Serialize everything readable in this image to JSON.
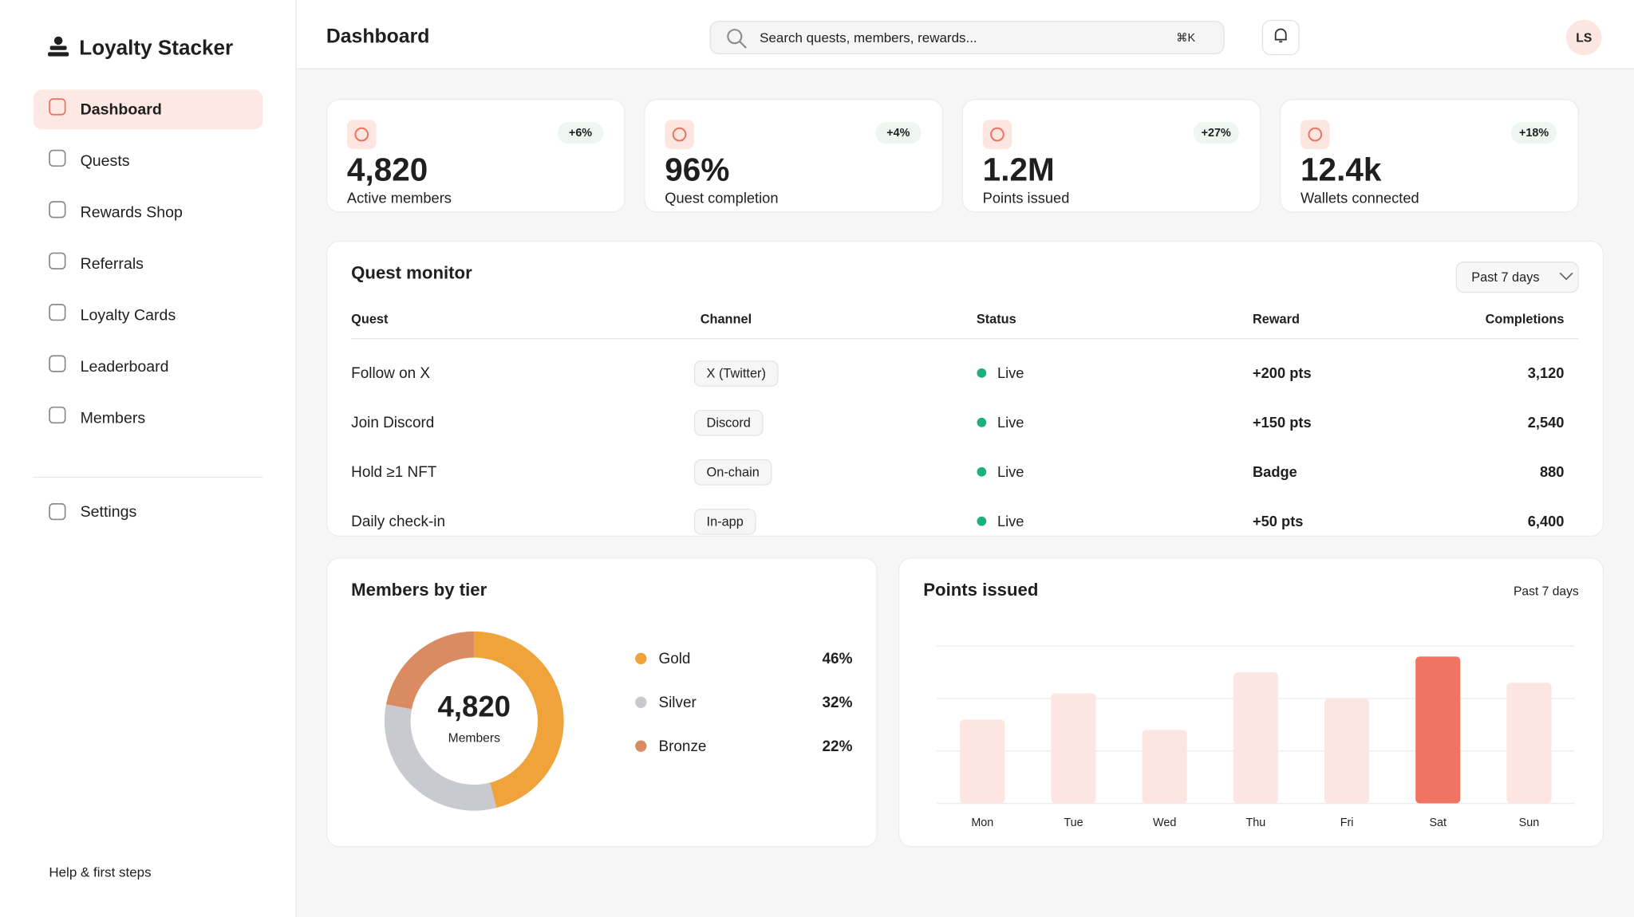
{
  "sidebar": {
    "brand": "Loyalty Stacker",
    "nav": [
      "Dashboard",
      "Quests",
      "Rewards Shop",
      "Referrals",
      "Loyalty Cards",
      "Leaderboard",
      "Members"
    ],
    "settings": "Settings",
    "help": "Help & first steps"
  },
  "header": {
    "title": "Dashboard",
    "search_placeholder": "Search quests, members, rewards...",
    "shortcut": "⌘K",
    "avatar": "LS"
  },
  "kpis": [
    {
      "value": "4,820",
      "label": "Active members",
      "delta": "+6%"
    },
    {
      "value": "96%",
      "label": "Quest completion",
      "delta": "+4%"
    },
    {
      "value": "1.2M",
      "label": "Points issued",
      "delta": "+27%"
    },
    {
      "value": "12.4k",
      "label": "Wallets connected",
      "delta": "+18%"
    }
  ],
  "quest_monitor": {
    "title": "Quest monitor",
    "range": "Past 7 days",
    "columns": [
      "Quest",
      "Channel",
      "Status",
      "Reward",
      "Completions"
    ],
    "rows": [
      [
        "Follow on X",
        "X (Twitter)",
        "Live",
        "+200 pts",
        "3,120"
      ],
      [
        "Join Discord",
        "Discord",
        "Live",
        "+150 pts",
        "2,540"
      ],
      [
        "Hold ≥1 NFT",
        "On-chain",
        "Live",
        "Badge",
        "880"
      ],
      [
        "Daily check-in",
        "In-app",
        "Live",
        "+50 pts",
        "6,400"
      ]
    ]
  },
  "chart_data": [
    {
      "type": "pie",
      "title": "Members by tier",
      "center_value": "4,820",
      "center_label": "Members",
      "categories": [
        "Gold",
        "Silver",
        "Bronze"
      ],
      "values": [
        46,
        32,
        22
      ],
      "value_labels": [
        "46%",
        "32%",
        "22%"
      ],
      "colors": [
        "#f1a33b",
        "#c9cacf",
        "#db8b61"
      ]
    },
    {
      "type": "bar",
      "title": "Points issued",
      "subtitle": "Past 7 days",
      "categories": [
        "Mon",
        "Tue",
        "Wed",
        "Thu",
        "Fri",
        "Sat",
        "Sun"
      ],
      "values": [
        1.6,
        2.1,
        1.4,
        2.5,
        2.0,
        2.8,
        2.3
      ],
      "colors": [
        "#fde6e2",
        "#fde6e2",
        "#fde6e2",
        "#fde6e2",
        "#fde6e2",
        "#ef7462",
        "#fde6e2"
      ],
      "ylim": [
        0,
        3
      ],
      "yticks": [
        0,
        1,
        2,
        3
      ],
      "grid": true
    }
  ]
}
